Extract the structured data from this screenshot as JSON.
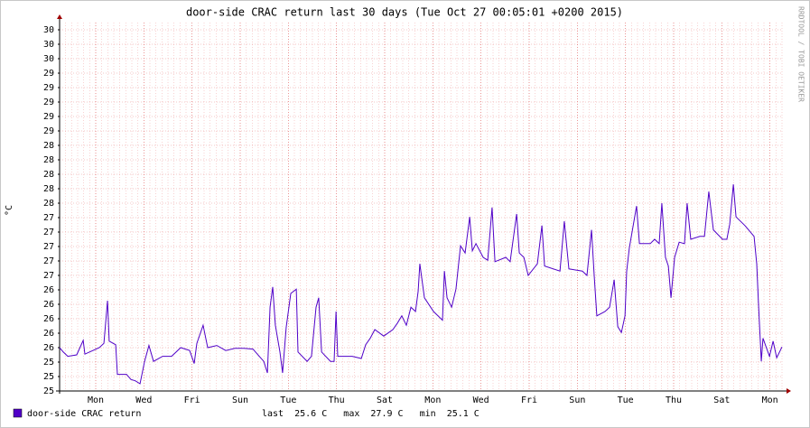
{
  "chart_data": {
    "type": "line",
    "title": "door-side CRAC return last 30 days (Tue Oct 27 00:05:01 +0200 2015)",
    "y_label": "°C",
    "watermark": "RRDTOOL / TOBI OETIKER",
    "stats": "last  25.6 C   max  27.9 C   min  25.1 C",
    "grid": true,
    "xlim": [
      0,
      30
    ],
    "xticks": [
      {
        "value": 1.5,
        "label": "Mon"
      },
      {
        "value": 3.5,
        "label": "Wed"
      },
      {
        "value": 5.5,
        "label": "Fri"
      },
      {
        "value": 7.5,
        "label": "Sun"
      },
      {
        "value": 9.5,
        "label": "Tue"
      },
      {
        "value": 11.5,
        "label": "Thu"
      },
      {
        "value": 13.5,
        "label": "Sat"
      },
      {
        "value": 15.5,
        "label": "Mon"
      },
      {
        "value": 17.5,
        "label": "Wed"
      },
      {
        "value": 19.5,
        "label": "Fri"
      },
      {
        "value": 21.5,
        "label": "Sun"
      },
      {
        "value": 23.5,
        "label": "Tue"
      },
      {
        "value": 25.5,
        "label": "Thu"
      },
      {
        "value": 27.5,
        "label": "Sat"
      },
      {
        "value": 29.5,
        "label": "Mon"
      }
    ],
    "ylim": [
      25,
      30
    ],
    "yticks": [
      {
        "value": 25.0,
        "label": "25"
      },
      {
        "value": 25.2,
        "label": "25"
      },
      {
        "value": 25.4,
        "label": "25"
      },
      {
        "value": 25.6,
        "label": "26"
      },
      {
        "value": 25.8,
        "label": "26"
      },
      {
        "value": 26.0,
        "label": "26"
      },
      {
        "value": 26.2,
        "label": "26"
      },
      {
        "value": 26.4,
        "label": "26"
      },
      {
        "value": 26.6,
        "label": "27"
      },
      {
        "value": 26.8,
        "label": "27"
      },
      {
        "value": 27.0,
        "label": "27"
      },
      {
        "value": 27.2,
        "label": "27"
      },
      {
        "value": 27.4,
        "label": "27"
      },
      {
        "value": 27.6,
        "label": "28"
      },
      {
        "value": 27.8,
        "label": "28"
      },
      {
        "value": 28.0,
        "label": "28"
      },
      {
        "value": 28.2,
        "label": "28"
      },
      {
        "value": 28.4,
        "label": "28"
      },
      {
        "value": 28.6,
        "label": "29"
      },
      {
        "value": 28.8,
        "label": "29"
      },
      {
        "value": 29.0,
        "label": "29"
      },
      {
        "value": 29.2,
        "label": "29"
      },
      {
        "value": 29.4,
        "label": "29"
      },
      {
        "value": 29.6,
        "label": "30"
      },
      {
        "value": 29.8,
        "label": "30"
      },
      {
        "value": 30.0,
        "label": "30"
      }
    ],
    "series": [
      {
        "name": "door-side CRAC return",
        "color": "#5000c8",
        "x": [
          0,
          0.15,
          0.34,
          0.71,
          0.98,
          1.05,
          1.65,
          1.84,
          1.99,
          2.06,
          2.33,
          2.4,
          2.78,
          2.96,
          3.15,
          3.34,
          3.53,
          3.71,
          3.9,
          4.28,
          4.65,
          5.03,
          5.4,
          5.59,
          5.7,
          5.96,
          6.15,
          6.53,
          6.9,
          7.28,
          7.65,
          8.03,
          8.29,
          8.48,
          8.63,
          8.74,
          8.85,
          8.96,
          9.15,
          9.26,
          9.41,
          9.6,
          9.83,
          9.9,
          10.28,
          10.46,
          10.65,
          10.76,
          10.88,
          11.25,
          11.4,
          11.48,
          11.55,
          12.15,
          12.53,
          12.71,
          12.9,
          13.09,
          13.46,
          13.84,
          14.03,
          14.21,
          14.4,
          14.59,
          14.78,
          14.89,
          14.96,
          15.15,
          15.53,
          15.9,
          15.98,
          16.09,
          16.28,
          16.46,
          16.65,
          16.84,
          17.03,
          17.14,
          17.29,
          17.59,
          17.78,
          17.96,
          18.08,
          18.53,
          18.71,
          18.98,
          19.09,
          19.28,
          19.46,
          19.84,
          20.03,
          20.14,
          20.78,
          20.96,
          21.15,
          21.71,
          21.9,
          22.09,
          22.2,
          22.31,
          22.65,
          22.84,
          23.03,
          23.18,
          23.33,
          23.48,
          23.55,
          23.66,
          23.96,
          24.08,
          24.53,
          24.71,
          24.9,
          25.01,
          25.16,
          25.28,
          25.39,
          25.54,
          25.73,
          25.95,
          26.06,
          26.21,
          26.59,
          26.78,
          26.96,
          27.15,
          27.53,
          27.71,
          27.83,
          27.98,
          28.09,
          28.46,
          28.84,
          28.95,
          29.03,
          29.14,
          29.21,
          29.48,
          29.63,
          29.78,
          30
        ],
        "values": [
          25.6,
          25.54,
          25.48,
          25.5,
          25.7,
          25.51,
          25.6,
          25.66,
          26.25,
          25.69,
          25.64,
          25.23,
          25.23,
          25.16,
          25.14,
          25.1,
          25.41,
          25.63,
          25.41,
          25.48,
          25.48,
          25.6,
          25.56,
          25.38,
          25.66,
          25.91,
          25.6,
          25.63,
          25.56,
          25.59,
          25.59,
          25.58,
          25.48,
          25.41,
          25.25,
          26.16,
          26.44,
          25.91,
          25.54,
          25.25,
          25.88,
          26.35,
          26.41,
          25.54,
          25.41,
          25.48,
          26.16,
          26.29,
          25.54,
          25.41,
          25.41,
          26.1,
          25.48,
          25.48,
          25.45,
          25.64,
          25.73,
          25.85,
          25.76,
          25.85,
          25.94,
          26.04,
          25.91,
          26.16,
          26.1,
          26.38,
          26.76,
          26.29,
          26.1,
          25.98,
          26.66,
          26.29,
          26.16,
          26.41,
          27.01,
          26.91,
          27.41,
          26.94,
          27.04,
          26.85,
          26.81,
          27.54,
          26.79,
          26.85,
          26.79,
          27.45,
          26.91,
          26.85,
          26.6,
          26.76,
          27.29,
          26.73,
          26.66,
          27.35,
          26.69,
          26.66,
          26.6,
          27.23,
          26.6,
          26.04,
          26.1,
          26.16,
          26.54,
          25.89,
          25.81,
          26.04,
          26.66,
          26.98,
          27.56,
          27.04,
          27.04,
          27.1,
          27.04,
          27.6,
          26.85,
          26.73,
          26.29,
          26.85,
          27.06,
          27.04,
          27.6,
          27.1,
          27.14,
          27.14,
          27.76,
          27.23,
          27.1,
          27.1,
          27.31,
          27.86,
          27.41,
          27.29,
          27.14,
          26.76,
          26.16,
          25.41,
          25.73,
          25.48,
          25.69,
          25.46,
          25.61
        ]
      }
    ]
  }
}
